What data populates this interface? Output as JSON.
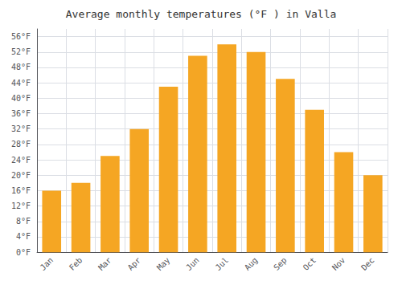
{
  "chart_data": {
    "type": "bar",
    "title": "Average monthly temperatures (°F ) in Valla",
    "categories": [
      "Jan",
      "Feb",
      "Mar",
      "Apr",
      "May",
      "Jun",
      "Jul",
      "Aug",
      "Sep",
      "Oct",
      "Nov",
      "Dec"
    ],
    "values": [
      16,
      18,
      25,
      32,
      43,
      51,
      54,
      52,
      45,
      37,
      26,
      20
    ],
    "color": "#F5A623",
    "ylim": [
      0,
      58
    ],
    "yticks": [
      {
        "value": 0,
        "label": "0°F"
      },
      {
        "value": 4,
        "label": "4°F"
      },
      {
        "value": 8,
        "label": "8°F"
      },
      {
        "value": 12,
        "label": "12°F"
      },
      {
        "value": 16,
        "label": "16°F"
      },
      {
        "value": 20,
        "label": "20°F"
      },
      {
        "value": 24,
        "label": "24°F"
      },
      {
        "value": 28,
        "label": "28°F"
      },
      {
        "value": 32,
        "label": "32°F"
      },
      {
        "value": 36,
        "label": "36°F"
      },
      {
        "value": 40,
        "label": "40°F"
      },
      {
        "value": 44,
        "label": "44°F"
      },
      {
        "value": 48,
        "label": "48°F"
      },
      {
        "value": 52,
        "label": "52°F"
      },
      {
        "value": 56,
        "label": "56°F"
      }
    ],
    "grid": true
  }
}
